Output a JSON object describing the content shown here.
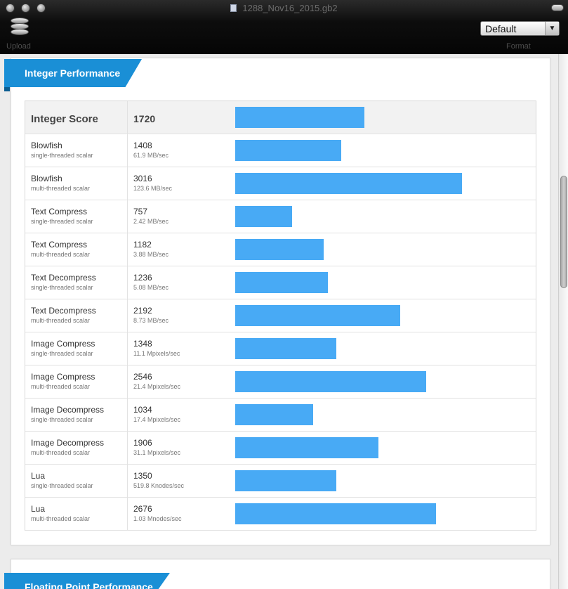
{
  "window": {
    "title": "1288_Nov16_2015.gb2"
  },
  "toolbar": {
    "upload_label": "Upload",
    "format_label": "Format",
    "format_value": "Default"
  },
  "integer_section": {
    "title": "Integer Performance",
    "score_label": "Integer Score",
    "score_value": "1720",
    "score_fraction": 0.5352,
    "rows": [
      {
        "name": "Blowfish",
        "mode": "single-threaded scalar",
        "score": "1408",
        "rate": "61.9 MB/sec",
        "fraction": 0.4381
      },
      {
        "name": "Blowfish",
        "mode": "multi-threaded scalar",
        "score": "3016",
        "rate": "123.6 MB/sec",
        "fraction": 0.9383
      },
      {
        "name": "Text Compress",
        "mode": "single-threaded scalar",
        "score": "757",
        "rate": "2.42 MB/sec",
        "fraction": 0.2355
      },
      {
        "name": "Text Compress",
        "mode": "multi-threaded scalar",
        "score": "1182",
        "rate": "3.88 MB/sec",
        "fraction": 0.3677
      },
      {
        "name": "Text Decompress",
        "mode": "single-threaded scalar",
        "score": "1236",
        "rate": "5.08 MB/sec",
        "fraction": 0.3845
      },
      {
        "name": "Text Decompress",
        "mode": "multi-threaded scalar",
        "score": "2192",
        "rate": "8.73 MB/sec",
        "fraction": 0.682
      },
      {
        "name": "Image Compress",
        "mode": "single-threaded scalar",
        "score": "1348",
        "rate": "11.1 Mpixels/sec",
        "fraction": 0.4194
      },
      {
        "name": "Image Compress",
        "mode": "multi-threaded scalar",
        "score": "2546",
        "rate": "21.4 Mpixels/sec",
        "fraction": 0.7921
      },
      {
        "name": "Image Decompress",
        "mode": "single-threaded scalar",
        "score": "1034",
        "rate": "17.4 Mpixels/sec",
        "fraction": 0.3217
      },
      {
        "name": "Image Decompress",
        "mode": "multi-threaded scalar",
        "score": "1906",
        "rate": "31.1 Mpixels/sec",
        "fraction": 0.593
      },
      {
        "name": "Lua",
        "mode": "single-threaded scalar",
        "score": "1350",
        "rate": "519.8 Knodes/sec",
        "fraction": 0.42
      },
      {
        "name": "Lua",
        "mode": "multi-threaded scalar",
        "score": "2676",
        "rate": "1.03 Mnodes/sec",
        "fraction": 0.8326
      }
    ]
  },
  "fp_section": {
    "title": "Floating Point Performance"
  },
  "colors": {
    "bar": "#48aaf5",
    "ribbon": "#1a8fd6"
  }
}
